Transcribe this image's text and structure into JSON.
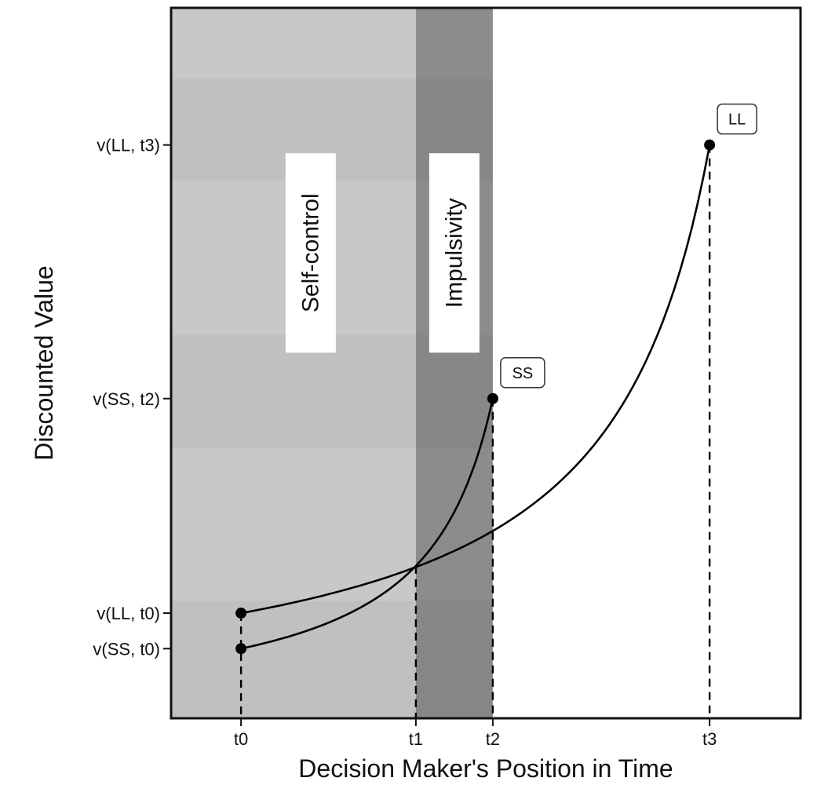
{
  "chart_data": {
    "type": "line",
    "title": "",
    "xlabel": "Decision Maker's Position in Time",
    "ylabel": "Discounted Value",
    "xlim": [
      -1,
      8
    ],
    "ylim": [
      0,
      10
    ],
    "x_ticks": [
      {
        "label": "t0",
        "value": 0
      },
      {
        "label": "t1",
        "value": 2.5
      },
      {
        "label": "t2",
        "value": 3.6
      },
      {
        "label": "t3",
        "value": 6.7
      }
    ],
    "y_ticks": [
      {
        "label": "v(LL, t3)",
        "value": 8.07
      },
      {
        "label": "v(SS, t2)",
        "value": 4.5
      },
      {
        "label": "v(LL, t0)",
        "value": 1.48
      },
      {
        "label": "v(SS, t0)",
        "value": 0.98
      }
    ],
    "regions": [
      {
        "label": "Self-control",
        "x_from": -1,
        "x_to": 2.5,
        "color": "#c8c8c8"
      },
      {
        "label": "Impulsivity",
        "x_from": 2.5,
        "x_to": 3.6,
        "color": "#8c8c8c"
      }
    ],
    "series": [
      {
        "name": "SS",
        "end_x": 3.6,
        "end_y": 4.5,
        "start_y": 0.98
      },
      {
        "name": "LL",
        "end_x": 6.7,
        "end_y": 8.07,
        "start_y": 1.48
      }
    ],
    "grid": false,
    "legend": "none"
  }
}
